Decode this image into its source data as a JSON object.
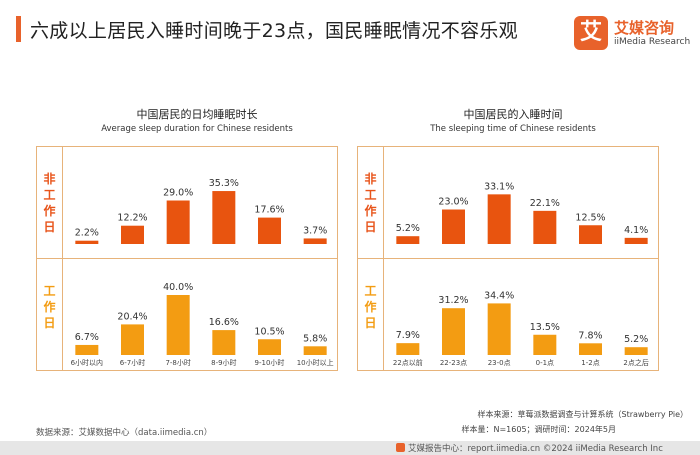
{
  "colors": {
    "accent": "#e8622b",
    "non_work_bar": "#e8540f",
    "work_bar": "#f39c12",
    "label_red": "#e8541a",
    "label_orange": "#f39c12",
    "logo": "#e8622b"
  },
  "header": {
    "title": "六成以上居民入睡时间晚于23点，国民睡眠情况不容乐观"
  },
  "logo": {
    "mark": "艾",
    "cn": "艾媒咨询",
    "en": "iiMedia Research"
  },
  "row_labels": {
    "non_work": "非工作日",
    "work": "工作日"
  },
  "footer": {
    "source": "数据来源：艾媒数据中心（data.iimedia.cn）",
    "sample_source": "样本来源：草莓派数据调查与计算系统（Strawberry Pie）",
    "sample_info": "样本量：N=1605；调研时间：2024年5月",
    "bottom_line": "艾媒报告中心：report.iimedia.cn    ©2024  iiMedia Research Inc"
  },
  "chart_data": [
    {
      "type": "bar",
      "title": "中国居民的日均睡眠时长",
      "subtitle": "Average sleep duration for Chinese residents",
      "categories": [
        "6小时以内",
        "6-7小时",
        "7-8小时",
        "8-9小时",
        "9-10小时",
        "10小时以上"
      ],
      "series": [
        {
          "name": "非工作日",
          "values": [
            2.2,
            12.2,
            29.0,
            35.3,
            17.6,
            3.7
          ],
          "labels": [
            "2.2%",
            "12.2%",
            "29.0%",
            "35.3%",
            "17.6%",
            "3.7%"
          ]
        },
        {
          "name": "工作日",
          "values": [
            6.7,
            20.4,
            40.0,
            16.6,
            10.5,
            5.8
          ],
          "labels": [
            "6.7%",
            "20.4%",
            "40.0%",
            "16.6%",
            "10.5%",
            "5.8%"
          ]
        }
      ],
      "unit": "%",
      "ylim": [
        0,
        40
      ]
    },
    {
      "type": "bar",
      "title": "中国居民的入睡时间",
      "subtitle": "The sleeping time of Chinese residents",
      "categories": [
        "22点以前",
        "22-23点",
        "23-0点",
        "0-1点",
        "1-2点",
        "2点之后"
      ],
      "series": [
        {
          "name": "非工作日",
          "values": [
            5.2,
            23.0,
            33.1,
            22.1,
            12.5,
            4.1
          ],
          "labels": [
            "5.2%",
            "23.0%",
            "33.1%",
            "22.1%",
            "12.5%",
            "4.1%"
          ]
        },
        {
          "name": "工作日",
          "values": [
            7.9,
            31.2,
            34.4,
            13.5,
            7.8,
            5.2
          ],
          "labels": [
            "7.9%",
            "31.2%",
            "34.4%",
            "13.5%",
            "7.8%",
            "5.2%"
          ]
        }
      ],
      "unit": "%",
      "ylim": [
        0,
        40
      ]
    }
  ]
}
